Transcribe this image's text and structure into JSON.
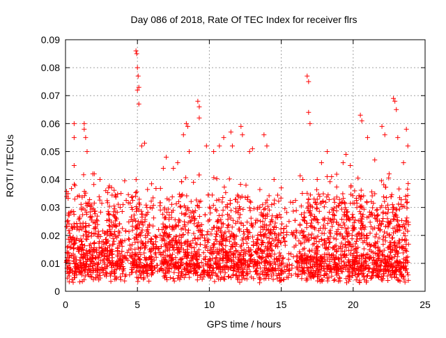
{
  "chart_data": {
    "type": "scatter",
    "title": "Day 086 of 2018, Rate Of TEC Index for receiver flrs",
    "xlabel": "GPS time / hours",
    "ylabel": "ROTI / TECUs",
    "xlim": [
      0,
      25
    ],
    "ylim": [
      0,
      0.09
    ],
    "x_ticks": [
      "0",
      "5",
      "10",
      "15",
      "20",
      "25"
    ],
    "y_ticks": [
      "0",
      "0.01",
      "0.02",
      "0.03",
      "0.04",
      "0.05",
      "0.06",
      "0.07",
      "0.08",
      "0.09"
    ],
    "grid": true,
    "marker": "plus",
    "color": "#ff0000",
    "series": [
      {
        "x": [
          0.6,
          0.6,
          0.6,
          1.3,
          1.3,
          1.4,
          1.5,
          1.9,
          2.0,
          2.4,
          2.8,
          3.0,
          3.5,
          4.0,
          4.6,
          4.9,
          4.95,
          5.0,
          5.0,
          5.05,
          5.1,
          5.1,
          5.3,
          5.5,
          6.8,
          7.0,
          7.5,
          7.8,
          8.2,
          8.4,
          8.5,
          8.6,
          9.2,
          9.3,
          9.3,
          9.8,
          10.3,
          10.7,
          11.0,
          11.5,
          11.6,
          12.2,
          12.3,
          12.8,
          13.0,
          13.8,
          14.0,
          14.5,
          15.0,
          16.5,
          16.8,
          16.9,
          16.9,
          17.0,
          17.5,
          17.8,
          18.2,
          18.5,
          19.3,
          19.5,
          19.8,
          20.5,
          20.6,
          21.0,
          21.5,
          22.0,
          22.2,
          22.5,
          22.8,
          22.9,
          23.0,
          23.1,
          23.5,
          23.7,
          23.8
        ],
        "y": [
          0.06,
          0.055,
          0.045,
          0.06,
          0.058,
          0.055,
          0.05,
          0.042,
          0.042,
          0.04,
          0.036,
          0.037,
          0.034,
          0.031,
          0.03,
          0.086,
          0.085,
          0.08,
          0.072,
          0.077,
          0.073,
          0.067,
          0.052,
          0.053,
          0.044,
          0.048,
          0.044,
          0.046,
          0.056,
          0.06,
          0.059,
          0.05,
          0.068,
          0.066,
          0.062,
          0.052,
          0.05,
          0.052,
          0.055,
          0.057,
          0.052,
          0.059,
          0.056,
          0.05,
          0.051,
          0.056,
          0.052,
          0.04,
          0.037,
          0.04,
          0.077,
          0.075,
          0.064,
          0.06,
          0.04,
          0.046,
          0.05,
          0.041,
          0.046,
          0.049,
          0.045,
          0.063,
          0.061,
          0.055,
          0.047,
          0.059,
          0.056,
          0.042,
          0.069,
          0.068,
          0.065,
          0.055,
          0.046,
          0.058,
          0.052
        ]
      }
    ]
  }
}
